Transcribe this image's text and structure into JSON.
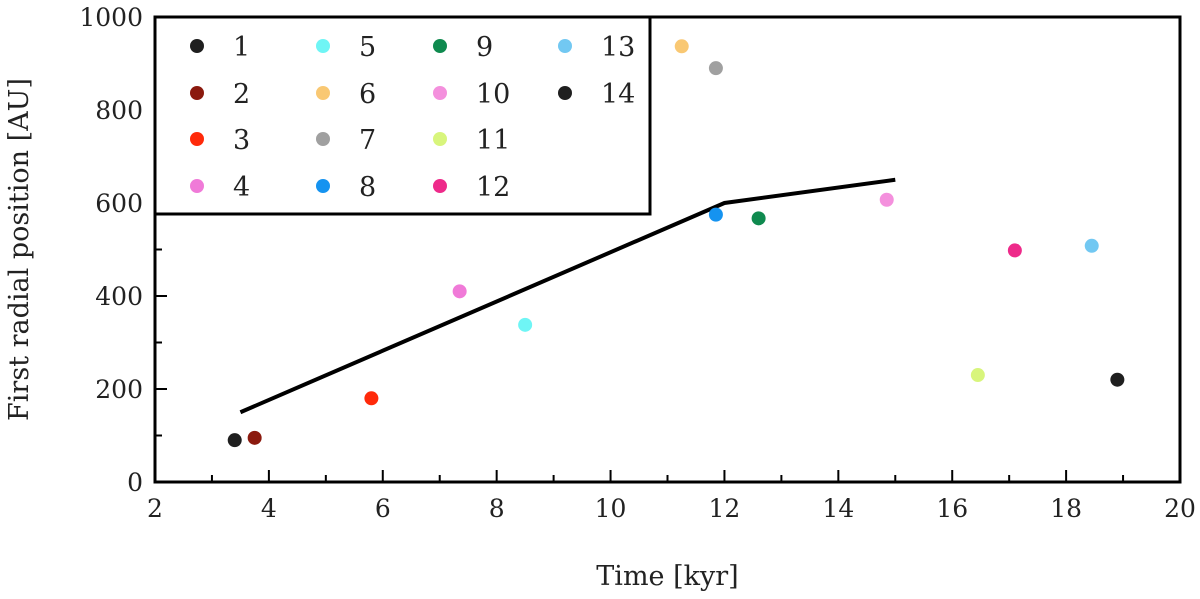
{
  "chart_data": {
    "type": "scatter",
    "title": "",
    "xlabel": "Time [kyr]",
    "ylabel": "First radial position [AU]",
    "xlim": [
      2,
      20
    ],
    "ylim": [
      0,
      1000
    ],
    "x_ticks": [
      2,
      4,
      6,
      8,
      10,
      12,
      14,
      16,
      18,
      20
    ],
    "y_ticks": [
      0,
      200,
      400,
      600,
      800,
      1000
    ],
    "grid": false,
    "legend_placement": "top-left",
    "series": [
      {
        "name": "1",
        "color": "#1f1f1f",
        "x": 3.4,
        "y": 90
      },
      {
        "name": "2",
        "color": "#8b1a0e",
        "x": 3.75,
        "y": 95
      },
      {
        "name": "3",
        "color": "#ff2a0a",
        "x": 5.8,
        "y": 180
      },
      {
        "name": "4",
        "color": "#f07ad8",
        "x": 7.35,
        "y": 410
      },
      {
        "name": "5",
        "color": "#6ff5f5",
        "x": 8.5,
        "y": 338
      },
      {
        "name": "6",
        "color": "#f9c873",
        "x": 11.25,
        "y": 937
      },
      {
        "name": "7",
        "color": "#a0a0a0",
        "x": 11.85,
        "y": 890
      },
      {
        "name": "8",
        "color": "#1593f0",
        "x": 11.85,
        "y": 575
      },
      {
        "name": "9",
        "color": "#0f8a4f",
        "x": 12.6,
        "y": 567
      },
      {
        "name": "10",
        "color": "#f490dd",
        "x": 14.85,
        "y": 607
      },
      {
        "name": "11",
        "color": "#d8f57c",
        "x": 16.45,
        "y": 230
      },
      {
        "name": "12",
        "color": "#ee2a8a",
        "x": 17.1,
        "y": 498
      },
      {
        "name": "13",
        "color": "#72c8f2",
        "x": 18.45,
        "y": 508
      },
      {
        "name": "14",
        "color": "#1f1f1f",
        "x": 18.9,
        "y": 220
      }
    ],
    "line": {
      "color": "#000000",
      "x": [
        3.5,
        12,
        15
      ],
      "y": [
        150,
        600,
        650
      ]
    }
  }
}
